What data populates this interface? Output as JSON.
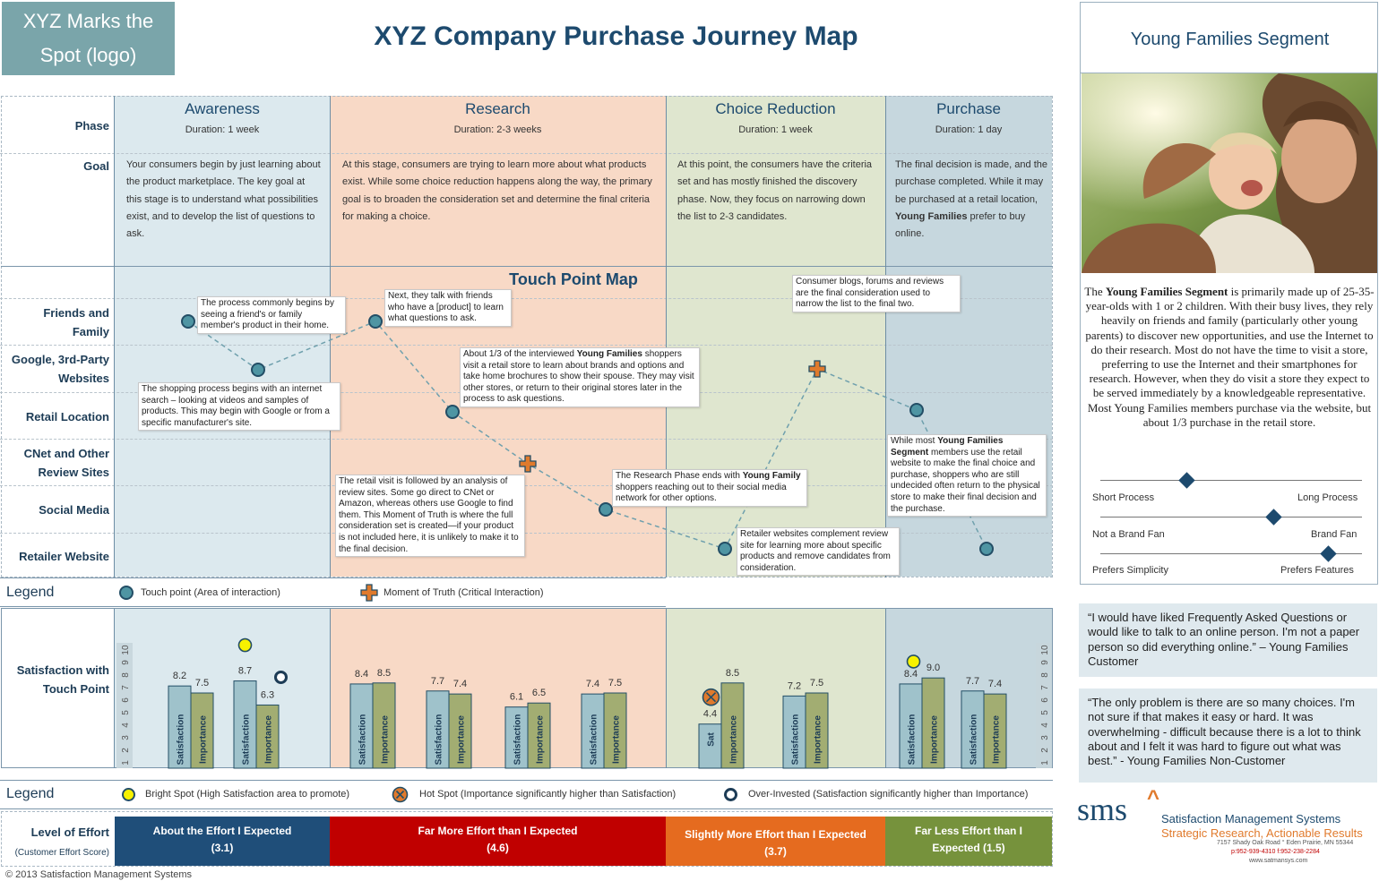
{
  "logo": "XYZ Marks the Spot (logo)",
  "title": "XYZ Company Purchase Journey Map",
  "row_labels": {
    "phase": "Phase",
    "goal": "Goal",
    "friends": "Friends and Family",
    "google": "Google, 3rd-Party Websites",
    "retail": "Retail Location",
    "cnet": "CNet and Other Review Sites",
    "social": "Social Media",
    "retailer": "Retailer Website",
    "satisfaction": "Satisfaction with Touch Point",
    "effort": "Level of Effort",
    "effort_sub": "(Customer Effort Score)"
  },
  "phases": [
    {
      "name": "Awareness",
      "duration": "Duration: 1 week",
      "goal": "Your consumers begin by just learning about the product marketplace. The key goal at this stage is to understand what possibilities exist, and to develop the list of questions to ask.",
      "color": "#dce9ee"
    },
    {
      "name": "Research",
      "duration": "Duration: 2-3 weeks",
      "goal": "At this stage, consumers are trying to learn more about what products exist.  While some choice reduction happens along the way, the primary goal is to broaden the consideration set and determine the final criteria for making a choice.",
      "color": "#f8d9c6"
    },
    {
      "name": "Choice Reduction",
      "duration": "Duration: 1 week",
      "goal": "At this point, the consumers have the criteria set and has mostly finished the discovery phase.  Now, they focus on narrowing down the list to 2-3 candidates.",
      "color": "#dfe6cf"
    },
    {
      "name": "Purchase",
      "duration": "Duration: 1 day",
      "goal_pre": "The final decision is made, and the purchase completed. While it may be purchased at a retail location, ",
      "goal_bold": "Young Families",
      "goal_post": " prefer to buy online.",
      "color": "#c6d7de"
    }
  ],
  "touch_point_title": "Touch Point Map",
  "notes": {
    "n1": "The process commonly begins by seeing a friend's or family member's product in their home.",
    "n2": "The shopping process begins with an internet search – looking at videos and samples of products.  This may begin with Google or from a specific manufacturer's site.",
    "n3": "Next, they talk with friends who have a [product] to learn what questions to ask.",
    "n4_pre": "About 1/3 of the interviewed ",
    "n4_bold": "Young Families",
    "n4_post": " shoppers visit a retail store to learn about brands and options and take home brochures to show their spouse.  They may visit other stores, or return to their original stores later in the process to ask questions.",
    "n5": "The retail visit is followed by an analysis of review sites.  Some go direct to CNet or Amazon, whereas others use Google to find them.  This Moment of Truth is where the full consideration set is created—if your product is not  included here, it is unlikely to make it to the final decision.",
    "n6_pre": "The Research Phase ends with ",
    "n6_bold": "Young Family",
    "n6_post": " shoppers reaching out to their social media network for other options.",
    "n7": "Consumer blogs, forums and reviews are the final consideration used to narrow the list to the final two.",
    "n8": "Retailer websites complement review site for learning more about specific products and remove candidates from consideration.",
    "n9_pre": "While most ",
    "n9_bold": "Young Families Segment",
    "n9_post": " members use the retail website to make the final choice and purchase, shoppers who are still undecided often return to the physical store to make their final decision and the purchase."
  },
  "legend1": {
    "title": "Legend",
    "touch": "Touch point (Area of interaction)",
    "moment": "Moment of Truth (Critical Interaction)"
  },
  "chart_data": {
    "type": "bar",
    "ylim": [
      1,
      10
    ],
    "yticks": [
      "1",
      "2",
      "3",
      "4",
      "5",
      "6",
      "7",
      "8",
      "9",
      "10"
    ],
    "groups": [
      {
        "sat": 8.2,
        "imp": 7.5,
        "sat_label": "Satisfaction",
        "imp_label": "Importance"
      },
      {
        "sat": 8.7,
        "imp": 6.3,
        "sat_label": "Satisfaction",
        "imp_label": "Importance",
        "marker": "bright-over"
      },
      {
        "sat": 8.4,
        "imp": 8.5,
        "sat_label": "Satisfaction",
        "imp_label": "Importance"
      },
      {
        "sat": 7.7,
        "imp": 7.4,
        "sat_label": "Satisfaction",
        "imp_label": "Importance"
      },
      {
        "sat": 6.1,
        "imp": 6.5,
        "sat_label": "Satisfaction",
        "imp_label": "Importance"
      },
      {
        "sat": 7.4,
        "imp": 7.5,
        "sat_label": "Satisfaction",
        "imp_label": "Importance"
      },
      {
        "sat": 4.4,
        "imp": 8.5,
        "sat_label": "Sat",
        "imp_label": "Importance",
        "marker": "hot"
      },
      {
        "sat": 7.2,
        "imp": 7.5,
        "sat_label": "Satisfaction",
        "imp_label": "Importance"
      },
      {
        "sat": 8.4,
        "imp": 9.0,
        "sat_label": "Satisfaction",
        "imp_label": "Importance",
        "marker": "bright"
      },
      {
        "sat": 7.7,
        "imp": 7.4,
        "sat_label": "Satisfaction",
        "imp_label": "Importance"
      }
    ]
  },
  "legend2": {
    "title": "Legend",
    "bright": "Bright Spot (High Satisfaction area to promote)",
    "hot": "Hot Spot (Importance significantly higher than Satisfaction)",
    "over": "Over-Invested (Satisfaction significantly higher than Importance)"
  },
  "effort": [
    {
      "line1": "About the Effort I Expected",
      "line2": "(3.1)",
      "color": "#1f4e79"
    },
    {
      "line1": "Far More Effort than I Expected",
      "line2": "(4.6)",
      "color": "#c00000"
    },
    {
      "line1": "Slightly More Effort than I Expected",
      "line2": "(3.7)",
      "color": "#e56b1f"
    },
    {
      "line1": "Far Less Effort than I",
      "line2": "Expected (1.5)",
      "color": "#76923c"
    }
  ],
  "copyright": "© 2013 Satisfaction Management Systems",
  "segment": {
    "title": "Young Families Segment",
    "desc_pre": "The ",
    "desc_bold": "Young Families Segment",
    "desc_post": " is primarily made up of 25-35-year-olds with 1 or 2 children. With their busy lives, they rely heavily on friends and family (particularly other young parents) to discover new opportunities, and use the Internet to do their research.  Most do not have the time to visit a store,  preferring to use the Internet and their smartphones for  research.  However, when they do visit a store they expect to be served immediately by a knowledgeable representative. Most Young Families members purchase via the website, but about 1/3 purchase in the retail store.",
    "sliders": [
      {
        "left": "Short Process",
        "right": "Long Process",
        "value": 0.33
      },
      {
        "left": "Not a Brand Fan",
        "right": "Brand Fan",
        "value": 0.66
      },
      {
        "left": "Prefers Simplicity",
        "right": "Prefers Features",
        "value": 0.87
      }
    ]
  },
  "quotes": [
    "“I would have liked Frequently Asked Questions or would like to talk to an online person.  I'm not a paper person so did everything online.” – Young Families Customer",
    "“The only problem is there are so many choices. I'm not sure if that makes it easy or hard. It was overwhelming - difficult because there is a lot to think about and I felt it was hard to figure out what was best.” - Young Families Non-Customer"
  ],
  "sms": {
    "mark": "sms",
    "name": "Satisfaction Management Systems",
    "tagline": "Strategic Research, Actionable Results",
    "address": "7157 Shady Oak Road ° Eden Prairie, MN 55344",
    "phone": "p:952-939-4310  f:952-238-2284",
    "web": "www.satmansys.com"
  }
}
